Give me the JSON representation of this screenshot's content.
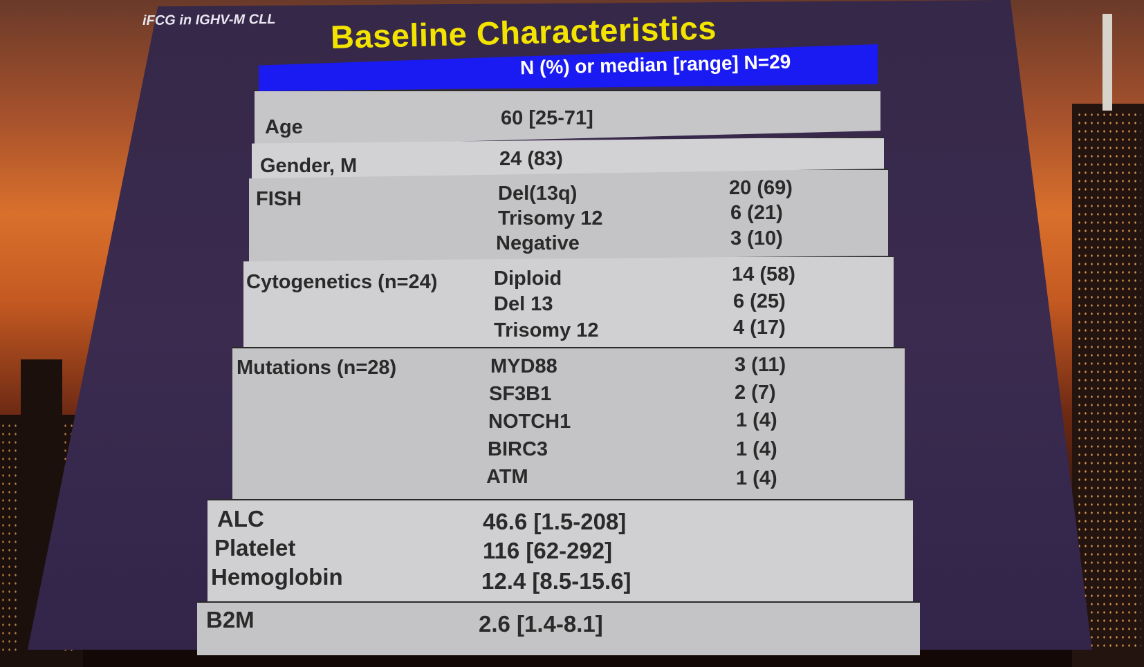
{
  "corner_tag": "iFCG in IGHV-M CLL",
  "title": "Baseline Characteristics",
  "header": "N (%) or median [range] N=29",
  "rows": {
    "age": {
      "label": "Age",
      "value": "60 [25-71]"
    },
    "gender": {
      "label": "Gender, M",
      "value": "24 (83)"
    },
    "fish": {
      "label": "FISH",
      "items": [
        {
          "name": "Del(13q)",
          "value": "20 (69)"
        },
        {
          "name": "Trisomy 12",
          "value": "6 (21)"
        },
        {
          "name": "Negative",
          "value": "3 (10)"
        }
      ]
    },
    "cytogenetics": {
      "label": "Cytogenetics (n=24)",
      "items": [
        {
          "name": "Diploid",
          "value": "14 (58)"
        },
        {
          "name": "Del 13",
          "value": "6 (25)"
        },
        {
          "name": "Trisomy 12",
          "value": "4 (17)"
        }
      ]
    },
    "mutations": {
      "label": "Mutations (n=28)",
      "items": [
        {
          "name": "MYD88",
          "value": "3 (11)"
        },
        {
          "name": "SF3B1",
          "value": "2 (7)"
        },
        {
          "name": "NOTCH1",
          "value": "1 (4)"
        },
        {
          "name": "BIRC3",
          "value": "1 (4)"
        },
        {
          "name": "ATM",
          "value": "1 (4)"
        }
      ]
    },
    "labs": [
      {
        "label": "ALC",
        "value": "46.6 [1.5-208]"
      },
      {
        "label": "Platelet",
        "value": "116 [62-292]"
      },
      {
        "label": "Hemoglobin",
        "value": "12.4 [8.5-15.6]"
      }
    ],
    "b2m": {
      "label": "B2M",
      "value": "2.6 [1.4-8.1]"
    }
  },
  "colors": {
    "title": "#f3e400",
    "header_bg": "#1a1af2",
    "row_shaded": "#c4c4c6",
    "row_light": "#d4d4d6",
    "slide_bg": "#3a2b4f"
  }
}
